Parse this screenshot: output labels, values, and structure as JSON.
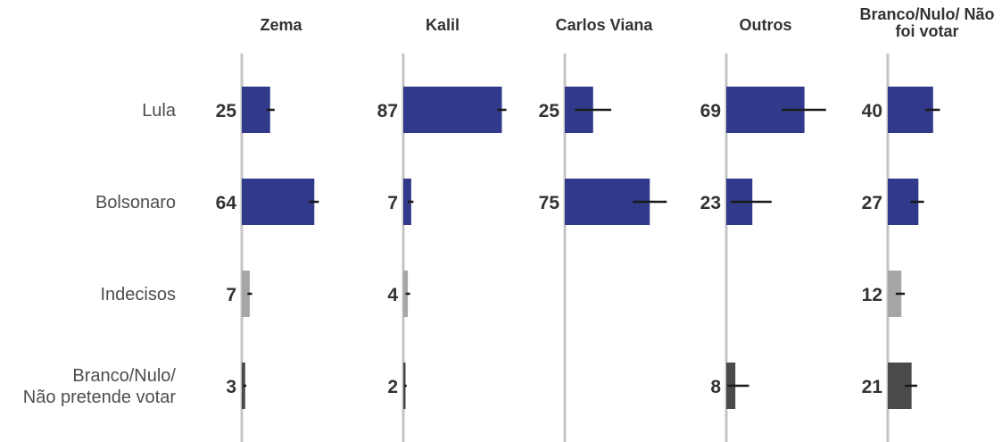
{
  "chart_data": {
    "type": "bar",
    "orientation": "horizontal",
    "facets": [
      "Zema",
      "Kalil",
      "Carlos Viana",
      "Outros",
      "Branco/Nulo/ Não foi votar"
    ],
    "facet_header_lines": [
      [
        "Zema"
      ],
      [
        "Kalil"
      ],
      [
        "Carlos Viana"
      ],
      [
        "Outros"
      ],
      [
        "Branco/Nulo/ Não",
        "foi votar"
      ]
    ],
    "categories": [
      "Lula",
      "Bolsonaro",
      "Indecisos",
      "Branco/Nulo/ Não pretende votar"
    ],
    "category_label_lines": [
      [
        "Lula"
      ],
      [
        "Bolsonaro"
      ],
      [
        "Indecisos"
      ],
      [
        "Branco/Nulo/",
        "Não pretende votar"
      ]
    ],
    "values": [
      [
        25,
        87,
        25,
        69,
        40
      ],
      [
        64,
        7,
        75,
        23,
        27
      ],
      [
        7,
        4,
        null,
        null,
        12
      ],
      [
        3,
        2,
        null,
        8,
        21
      ]
    ],
    "error_bars": [
      [
        [
          22,
          29
        ],
        [
          83,
          91
        ],
        [
          9,
          41
        ],
        [
          49,
          88
        ],
        [
          33,
          46
        ]
      ],
      [
        [
          59,
          68
        ],
        [
          4,
          9
        ],
        [
          60,
          90
        ],
        [
          4,
          40
        ],
        [
          20,
          32
        ]
      ],
      [
        [
          5,
          9
        ],
        [
          2,
          6
        ],
        null,
        null,
        [
          7,
          15
        ]
      ],
      [
        [
          1,
          4
        ],
        [
          1,
          3
        ],
        null,
        [
          1,
          20
        ],
        [
          15,
          26
        ]
      ]
    ],
    "category_colors": [
      "#313a8a",
      "#313a8a",
      "#a6a6a6",
      "#4a4a4a"
    ],
    "xlim": [
      0,
      100
    ],
    "grid": false,
    "legend": "none"
  }
}
